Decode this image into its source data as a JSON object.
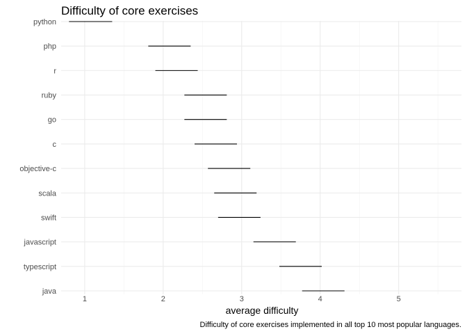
{
  "chart_data": {
    "type": "range-segment",
    "title": "Difficulty of core exercises",
    "xlabel": "average difficulty",
    "ylabel": "",
    "caption": "Difficulty of core exercises implemented in all top 10 most popular languages.",
    "xlim": [
      0.7,
      5.8
    ],
    "x_ticks": [
      1,
      2,
      3,
      4,
      5
    ],
    "x_minor_ticks": [
      1.5,
      2.5,
      3.5,
      4.5,
      5.5
    ],
    "grid": true,
    "legend": "none",
    "categories": [
      "python",
      "php",
      "r",
      "ruby",
      "go",
      "c",
      "objective-c",
      "scala",
      "swift",
      "javascript",
      "typescript",
      "java"
    ],
    "series": [
      {
        "low": [
          0.8,
          1.81,
          1.9,
          2.27,
          2.27,
          2.4,
          2.57,
          2.65,
          2.7,
          3.15,
          3.48,
          3.77
        ],
        "high": [
          1.35,
          2.35,
          2.44,
          2.81,
          2.81,
          2.94,
          3.11,
          3.19,
          3.24,
          3.69,
          4.02,
          4.31
        ]
      }
    ],
    "colors": {
      "segment": "#000000",
      "grid_major": "#ebebeb",
      "grid_minor": "#f2f2f2",
      "tick_text": "#4d4d4d",
      "background": "#ffffff"
    }
  }
}
